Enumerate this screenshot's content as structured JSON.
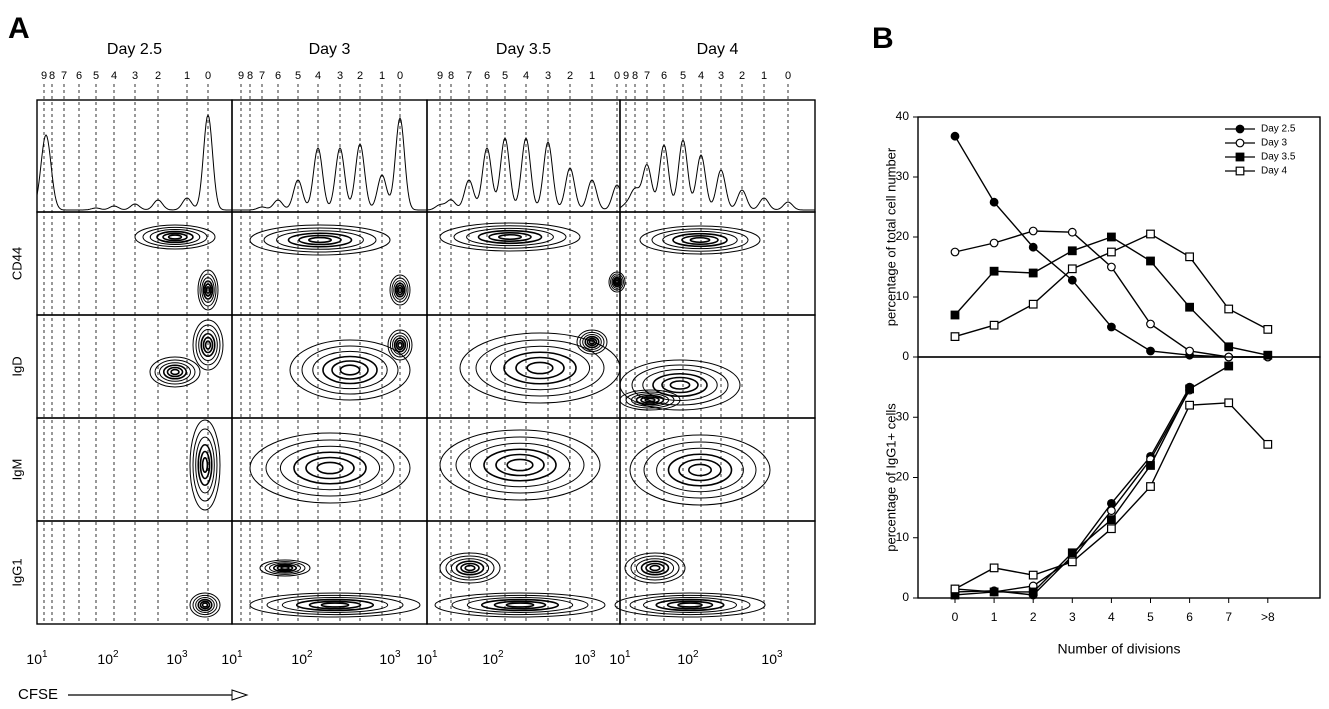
{
  "panel_labels": [
    "A",
    "B"
  ],
  "panel_a": {
    "days": [
      "Day 2.5",
      "Day 3",
      "Day 3.5",
      "Day 4"
    ],
    "division_labels": [
      [
        "9",
        "8",
        "7",
        "6",
        "5",
        "4",
        "3",
        "2",
        "1",
        "0"
      ],
      [
        "9",
        "8",
        "7",
        "6",
        "5",
        "4",
        "3",
        "2",
        "1",
        "0"
      ],
      [
        "9",
        "8",
        "7",
        "6",
        "5",
        "4",
        "3",
        "2",
        "1",
        "0"
      ],
      [
        "9",
        "8",
        "7",
        "6",
        "5",
        "4",
        "3",
        "2",
        "1",
        "0"
      ]
    ],
    "row_labels": [
      "CD44",
      "IgD",
      "IgM",
      "IgG1"
    ],
    "x_tick_labels": [
      {
        "base": "10",
        "exp": "1"
      },
      {
        "base": "10",
        "exp": "2"
      },
      {
        "base": "10",
        "exp": "3"
      },
      {
        "base": "10",
        "exp": "1"
      },
      {
        "base": "10",
        "exp": "2"
      },
      {
        "base": "10",
        "exp": "3"
      },
      {
        "base": "10",
        "exp": "1"
      },
      {
        "base": "10",
        "exp": "2"
      },
      {
        "base": "10",
        "exp": "3"
      },
      {
        "base": "10",
        "exp": "1"
      },
      {
        "base": "10",
        "exp": "2"
      },
      {
        "base": "10",
        "exp": "3"
      }
    ],
    "x_label": "CFSE"
  },
  "chart_data": [
    {
      "type": "line",
      "ylabel": "percentage of total cell number",
      "ylim": [
        0,
        40
      ],
      "yticks": [
        0,
        10,
        20,
        30,
        40
      ],
      "legend": "top-right",
      "series": [
        {
          "name": "Day 2.5",
          "color": "#000",
          "marker": "circle",
          "filled": true,
          "values": [
            36.8,
            25.8,
            18.3,
            12.8,
            5,
            1,
            0.3,
            0,
            0
          ]
        },
        {
          "name": "Day 3",
          "color": "#000",
          "marker": "circle",
          "filled": false,
          "values": [
            17.5,
            19,
            21,
            20.8,
            15,
            5.5,
            1,
            0,
            0
          ]
        },
        {
          "name": "Day 3.5",
          "color": "#000",
          "marker": "square",
          "filled": true,
          "values": [
            7,
            14.3,
            14,
            17.7,
            20,
            16,
            8.3,
            1.7,
            0.3
          ]
        },
        {
          "name": "Day 4",
          "color": "#000",
          "marker": "square",
          "filled": false,
          "values": [
            3.4,
            5.3,
            8.8,
            14.7,
            17.5,
            20.5,
            16.7,
            8,
            4.6
          ]
        }
      ]
    },
    {
      "type": "line",
      "ylabel": "percentage of IgG1+ cells",
      "xlabel": "Number of divisions",
      "categories": [
        "0",
        "1",
        "2",
        "3",
        "4",
        "5",
        "6",
        "7",
        ">8"
      ],
      "ylim": [
        0,
        40
      ],
      "yticks": [
        0,
        10,
        20,
        30
      ],
      "series": [
        {
          "color": "#000",
          "marker": "circle",
          "filled": true,
          "values": [
            1,
            1.2,
            0.5,
            7,
            15.7,
            23.5,
            35,
            null,
            null
          ]
        },
        {
          "color": "#000",
          "marker": "circle",
          "filled": false,
          "values": [
            1.5,
            1,
            2,
            6.5,
            14.5,
            23,
            34.5,
            null,
            null
          ]
        },
        {
          "color": "#000",
          "marker": "square",
          "filled": true,
          "values": [
            0.5,
            1,
            1,
            7.5,
            13,
            22,
            34.7,
            38.5,
            null
          ]
        },
        {
          "color": "#000",
          "marker": "square",
          "filled": false,
          "values": [
            1.5,
            5,
            3.8,
            6,
            11.5,
            18.5,
            32,
            32.4,
            25.5
          ]
        }
      ]
    }
  ]
}
